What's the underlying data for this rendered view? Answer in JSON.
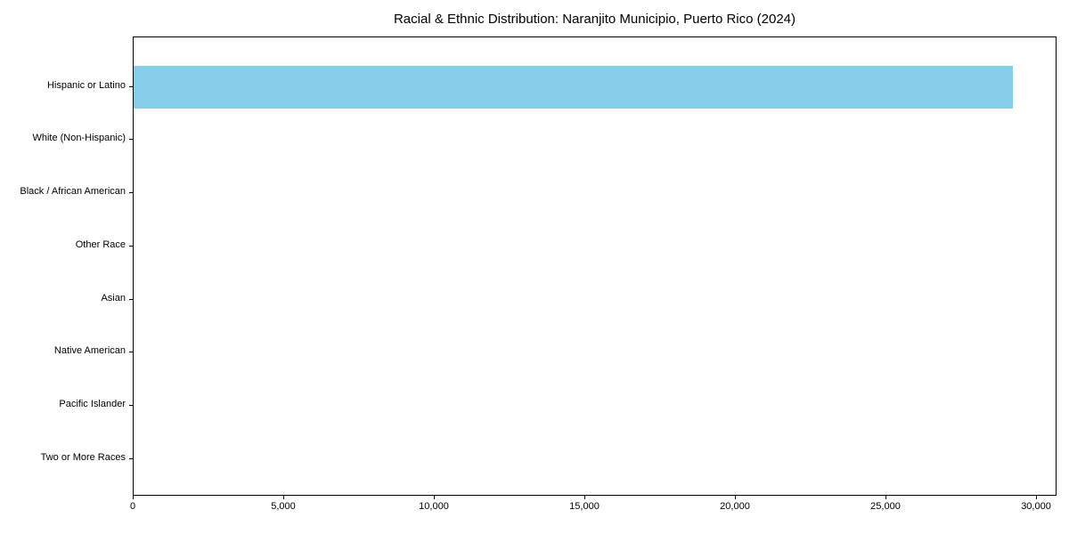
{
  "chart_data": {
    "type": "bar",
    "orientation": "horizontal",
    "title": "Racial & Ethnic Distribution: Naranjito Municipio, Puerto Rico (2024)",
    "categories": [
      "Hispanic or Latino",
      "White (Non-Hispanic)",
      "Black / African American",
      "Other Race",
      "Asian",
      "Native American",
      "Pacific Islander",
      "Two or More Races"
    ],
    "values": [
      29200,
      0,
      0,
      0,
      0,
      0,
      0,
      0
    ],
    "xlabel": "",
    "ylabel": "",
    "xlim": [
      0,
      30680
    ],
    "x_ticks": [
      {
        "value": 0,
        "label": "0"
      },
      {
        "value": 5000,
        "label": "5,000"
      },
      {
        "value": 10000,
        "label": "10,000"
      },
      {
        "value": 15000,
        "label": "15,000"
      },
      {
        "value": 20000,
        "label": "20,000"
      },
      {
        "value": 25000,
        "label": "25,000"
      },
      {
        "value": 30000,
        "label": "30,000"
      }
    ],
    "grid": false,
    "legend": null,
    "bar_color": "#87CEEB",
    "background_color": "#ffffff",
    "text_color": "#000000"
  }
}
